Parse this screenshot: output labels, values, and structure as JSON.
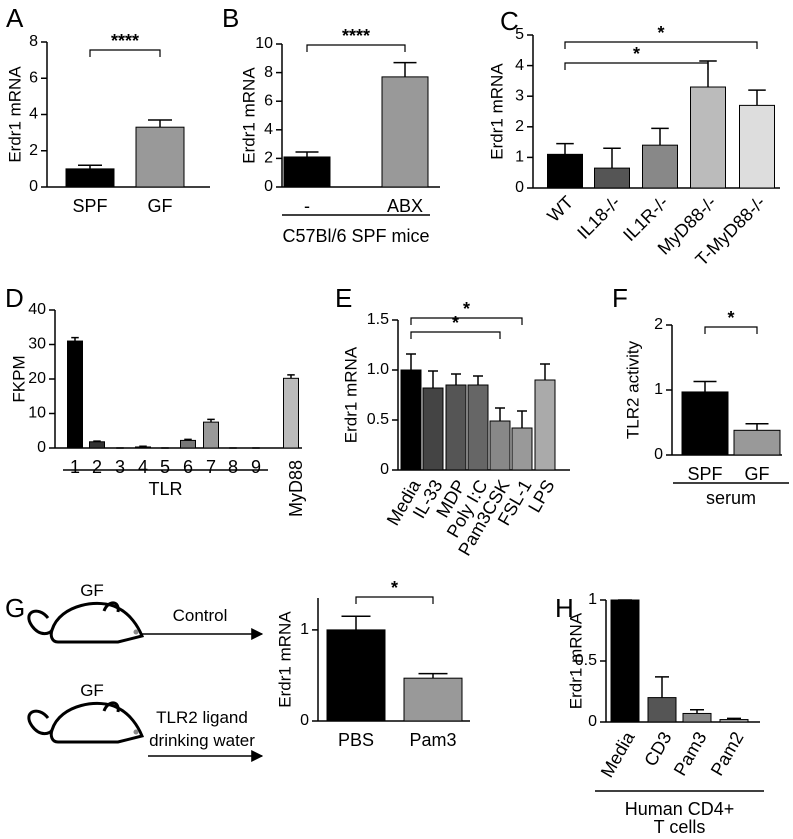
{
  "chart_data": [
    {
      "panel": "A",
      "type": "bar",
      "ylabel": "Erdr1 mRNA",
      "categories": [
        "SPF",
        "GF"
      ],
      "values": [
        1.0,
        3.3
      ],
      "errors": [
        0.2,
        0.4
      ],
      "colors": [
        "#000000",
        "#999999"
      ],
      "ylim": [
        0,
        8
      ],
      "yticks": [
        0,
        2,
        4,
        6,
        8
      ],
      "significance": [
        {
          "from": 0,
          "to": 1,
          "label": "****"
        }
      ]
    },
    {
      "panel": "B",
      "type": "bar",
      "ylabel": "Erdr1 mRNA",
      "categories": [
        "-",
        "ABX"
      ],
      "values": [
        2.1,
        7.7
      ],
      "errors": [
        0.35,
        1.0
      ],
      "colors": [
        "#000000",
        "#999999"
      ],
      "ylim": [
        0,
        10
      ],
      "yticks": [
        0,
        2,
        4,
        6,
        8,
        10
      ],
      "significance": [
        {
          "from": 0,
          "to": 1,
          "label": "****"
        }
      ],
      "group": {
        "label": [
          "C57Bl/6 SPF mice"
        ],
        "from": 0,
        "to": 1
      }
    },
    {
      "panel": "C",
      "type": "bar",
      "ylabel": "Erdr1 mRNA",
      "categories": [
        "WT",
        "IL18-/-",
        "IL1R-/-",
        "MyD88-/-",
        "T-MyD88-/-"
      ],
      "values": [
        1.1,
        0.65,
        1.4,
        3.3,
        2.7
      ],
      "errors": [
        0.35,
        0.65,
        0.55,
        0.85,
        0.5
      ],
      "colors": [
        "#000000",
        "#555555",
        "#888888",
        "#bbbbbb",
        "#dddddd"
      ],
      "ylim": [
        0,
        5
      ],
      "yticks": [
        0,
        1,
        2,
        3,
        4,
        5
      ],
      "significance": [
        {
          "from": 0,
          "to": 3,
          "label": "*"
        },
        {
          "from": 0,
          "to": 4,
          "label": "*"
        }
      ]
    },
    {
      "panel": "D",
      "type": "bar",
      "ylabel": "FKPM",
      "categories": [
        "1",
        "2",
        "3",
        "4",
        "5",
        "6",
        "7",
        "8",
        "9",
        "MyD88"
      ],
      "values": [
        31,
        1.8,
        0,
        0.3,
        0,
        2.2,
        7.5,
        0,
        0,
        20.2
      ],
      "errors": [
        1,
        0.2,
        0,
        0.2,
        0,
        0.3,
        0.8,
        0,
        0,
        1
      ],
      "colors": [
        "#000000",
        "#333333",
        "#333333",
        "#333333",
        "#333333",
        "#777777",
        "#999999",
        "#999999",
        "#999999",
        "#bbbbbb"
      ],
      "ylim": [
        0,
        40
      ],
      "yticks": [
        0,
        10,
        20,
        30,
        40
      ],
      "significance": [],
      "group": {
        "label": [
          "TLR"
        ],
        "from": 0,
        "to": 8
      }
    },
    {
      "panel": "E",
      "type": "bar",
      "ylabel": "Erdr1 mRNA",
      "categories": [
        "Media",
        "IL-33",
        "MDP",
        "Poly I:C",
        "Pam3CSK",
        "FSL-1",
        "LPS"
      ],
      "values": [
        1.0,
        0.82,
        0.85,
        0.85,
        0.49,
        0.42,
        0.9
      ],
      "errors": [
        0.16,
        0.17,
        0.11,
        0.09,
        0.13,
        0.17,
        0.16
      ],
      "colors": [
        "#000000",
        "#444444",
        "#555555",
        "#666666",
        "#888888",
        "#999999",
        "#aaaaaa"
      ],
      "ylim": [
        0,
        1.5
      ],
      "yticks": [
        0,
        0.5,
        {
          "value": 1,
          "label": "1.0"
        },
        1.5
      ],
      "significance": [
        {
          "from": 0,
          "to": 4,
          "label": "*"
        },
        {
          "from": 0,
          "to": 5,
          "label": "*"
        }
      ]
    },
    {
      "panel": "F",
      "type": "bar",
      "ylabel": "TLR2 activity",
      "categories": [
        "SPF",
        "GF"
      ],
      "values": [
        0.97,
        0.38
      ],
      "errors": [
        0.16,
        0.1
      ],
      "colors": [
        "#000000",
        "#999999"
      ],
      "ylim": [
        0,
        2
      ],
      "yticks": [
        0,
        1,
        2
      ],
      "significance": [
        {
          "from": 0,
          "to": 1,
          "label": "*"
        }
      ],
      "group": {
        "label": [
          "serum"
        ],
        "from": 0,
        "to": 1
      }
    },
    {
      "panel": "G",
      "type": "bar",
      "ylabel": "Erdr1 mRNA",
      "categories": [
        "PBS",
        "Pam3"
      ],
      "values": [
        1.0,
        0.47
      ],
      "errors": [
        0.15,
        0.05
      ],
      "colors": [
        "#000000",
        "#999999"
      ],
      "ylim": [
        0,
        1.35
      ],
      "yticks": [
        0,
        1
      ],
      "significance": [
        {
          "from": 0,
          "to": 1,
          "label": "*"
        }
      ]
    },
    {
      "panel": "H",
      "type": "bar",
      "ylabel": "Erdr1 mRNA",
      "categories": [
        "Media",
        "CD3",
        "Pam3",
        "Pam2"
      ],
      "values": [
        1.0,
        0.2,
        0.07,
        0.02
      ],
      "errors": [
        0,
        0.17,
        0.03,
        0.01
      ],
      "colors": [
        "#000000",
        "#555555",
        "#888888",
        "#aaaaaa"
      ],
      "ylim": [
        0,
        1
      ],
      "yticks": [
        0,
        0.5,
        1
      ],
      "significance": [],
      "group": {
        "label": [
          "Human CD4+",
          "T cells"
        ],
        "from": 0,
        "to": 3
      }
    }
  ],
  "diagram": {
    "subjects": [
      {
        "label": "GF",
        "treatment": [
          "Control"
        ]
      },
      {
        "label": "GF",
        "treatment": [
          "TLR2 ligand",
          "drinking water"
        ]
      }
    ]
  }
}
